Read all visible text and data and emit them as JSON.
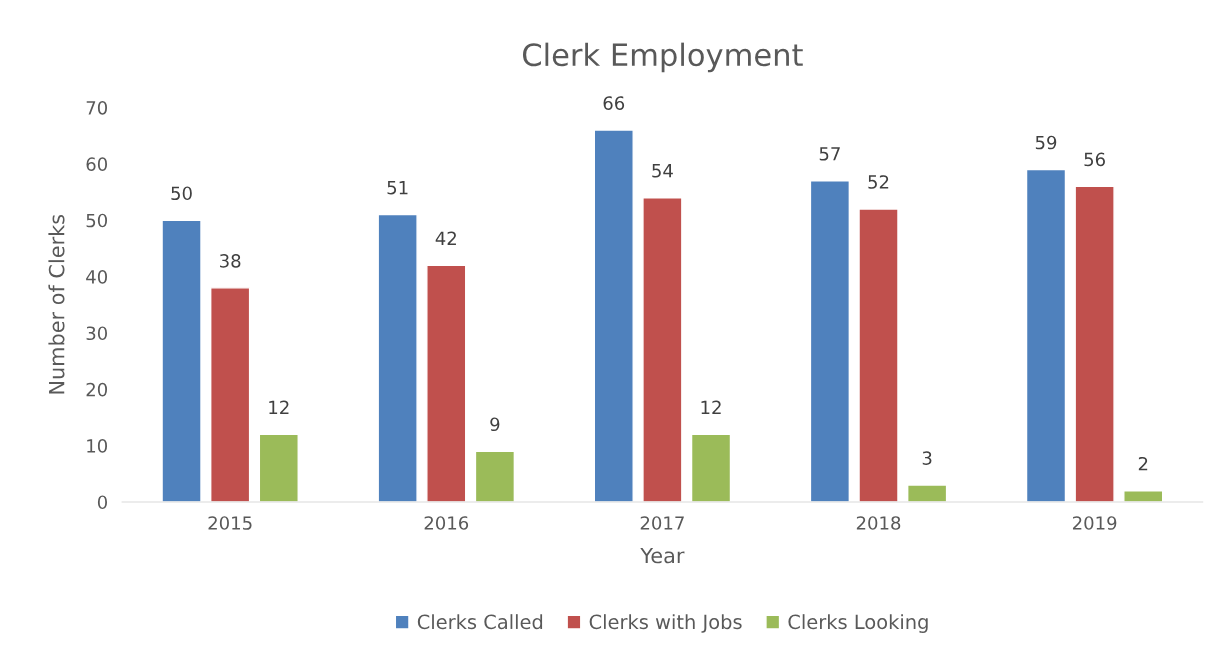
{
  "chart_data": {
    "type": "bar",
    "title": "Clerk Employment",
    "xlabel": "Year",
    "ylabel": "Number of Clerks",
    "categories": [
      "2015",
      "2016",
      "2017",
      "2018",
      "2019"
    ],
    "series": [
      {
        "name": "Clerks Called",
        "color": "#4f81bd",
        "values": [
          50,
          51,
          66,
          57,
          59
        ]
      },
      {
        "name": "Clerks with Jobs",
        "color": "#c0504d",
        "values": [
          38,
          42,
          54,
          52,
          56
        ]
      },
      {
        "name": "Clerks Looking",
        "color": "#9bbb59",
        "values": [
          12,
          9,
          12,
          3,
          2
        ]
      }
    ],
    "ylim": [
      0,
      70
    ],
    "yticks": [
      0,
      10,
      20,
      30,
      40,
      50,
      60,
      70
    ],
    "data_labels": true,
    "legend": "bottom",
    "grid": false
  }
}
